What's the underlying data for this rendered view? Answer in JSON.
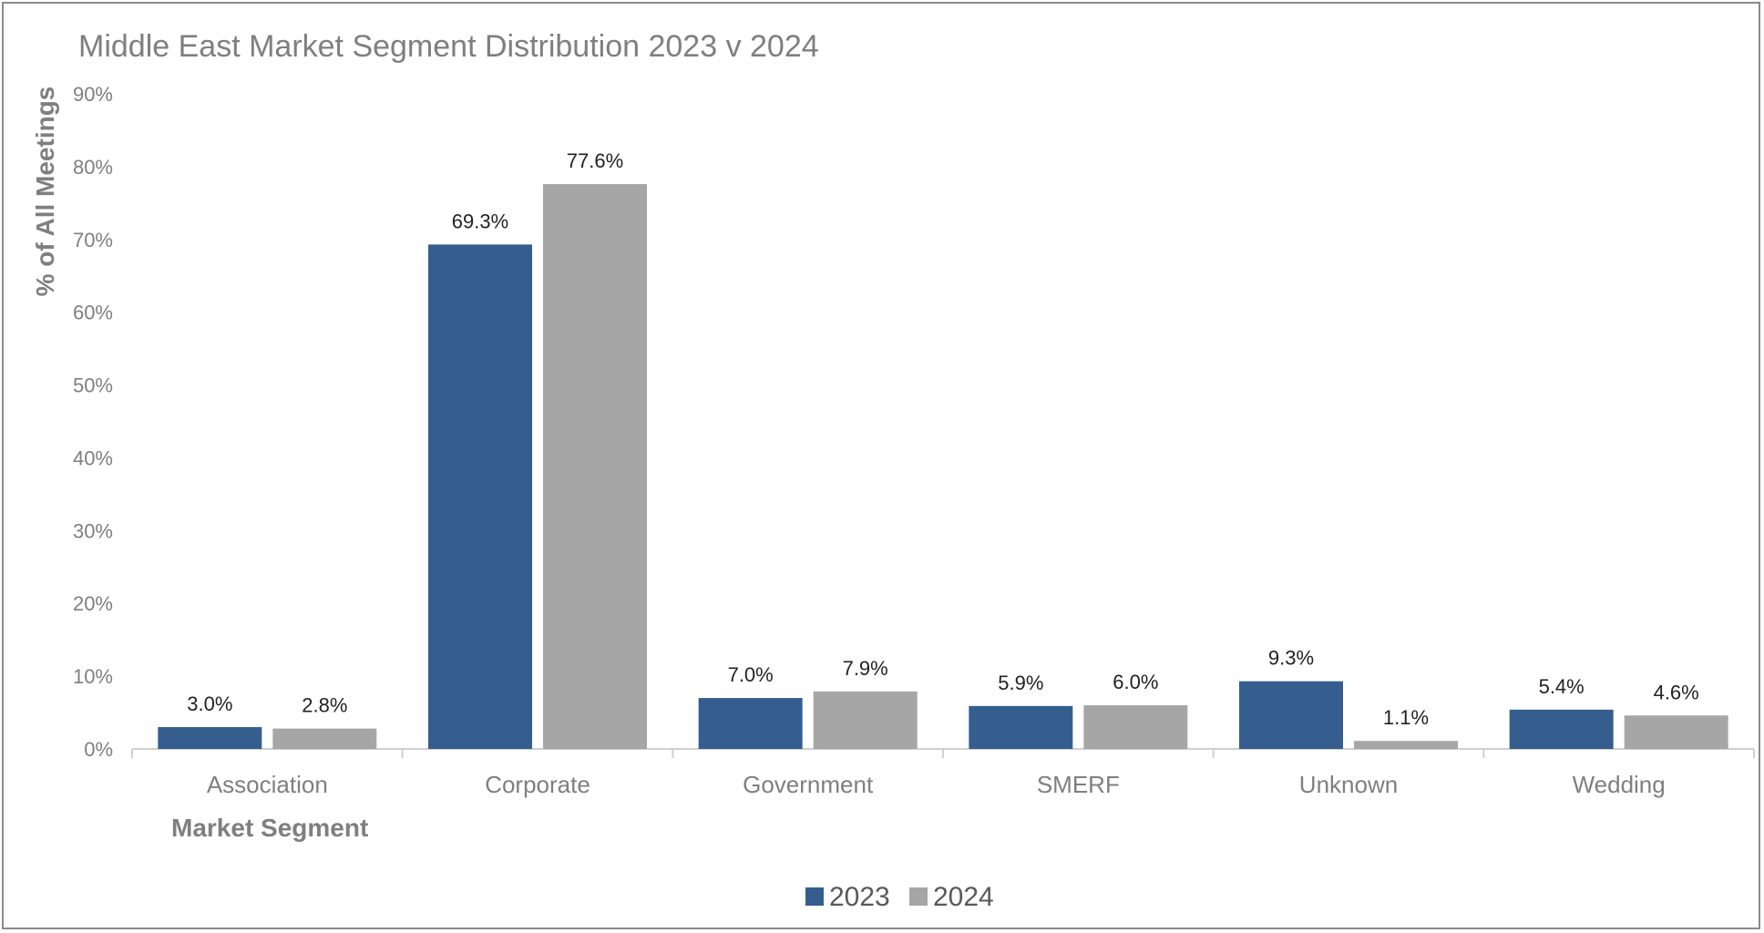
{
  "chart_data": {
    "type": "bar",
    "title": "Middle East Market Segment Distribution 2023 v 2024",
    "xlabel": "Market Segment",
    "ylabel": "% of All  Meetings",
    "ylim": [
      0,
      90
    ],
    "yticks": [
      "0%",
      "10%",
      "20%",
      "30%",
      "40%",
      "50%",
      "60%",
      "70%",
      "80%",
      "90%"
    ],
    "categories": [
      "Association",
      "Corporate",
      "Government",
      "SMERF",
      "Unknown",
      "Wedding"
    ],
    "series": [
      {
        "name": "2023",
        "color": "#355E8F",
        "values": [
          3.0,
          69.3,
          7.0,
          5.9,
          9.3,
          5.4
        ],
        "labels": [
          "3.0%",
          "69.3%",
          "7.0%",
          "5.9%",
          "9.3%",
          "5.4%"
        ]
      },
      {
        "name": "2024",
        "color": "#A6A6A6",
        "values": [
          2.8,
          77.6,
          7.9,
          6.0,
          1.1,
          4.6
        ],
        "labels": [
          "2.8%",
          "77.6%",
          "7.9%",
          "6.0%",
          "1.1%",
          "4.6%"
        ]
      }
    ],
    "legend": "bottom",
    "grid": false
  }
}
